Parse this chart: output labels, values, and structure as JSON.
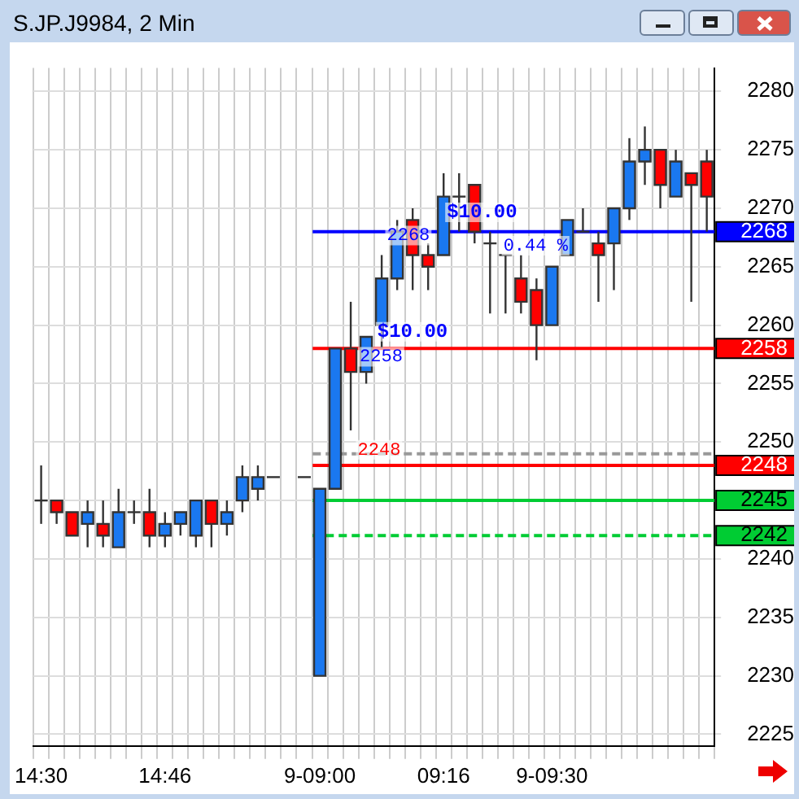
{
  "chart_data": {
    "type": "candlestick",
    "title": "S.JP.J9984, 2 Min",
    "categories": [
      "14:30",
      null,
      null,
      null,
      null,
      null,
      null,
      null,
      "14:46",
      null,
      null,
      null,
      null,
      null,
      null,
      null,
      null,
      null,
      "9-09:00",
      null,
      null,
      null,
      null,
      null,
      null,
      null,
      "09:16",
      null,
      null,
      null,
      null,
      null,
      null,
      "9-09:30",
      null,
      null,
      null,
      null,
      null,
      null,
      null,
      null,
      null,
      null
    ],
    "ohlc": [
      [
        2245,
        2248,
        2243,
        2245
      ],
      [
        2245,
        2245,
        2243,
        2244
      ],
      [
        2244,
        2244,
        2242,
        2242
      ],
      [
        2243,
        2245,
        2241,
        2244
      ],
      [
        2243,
        2245,
        2241,
        2242
      ],
      [
        2241,
        2246,
        2241,
        2244
      ],
      [
        2244,
        2245,
        2243,
        2244
      ],
      [
        2244,
        2246,
        2241,
        2242
      ],
      [
        2242,
        2244,
        2241,
        2243
      ],
      [
        2243,
        2244,
        2242,
        2244
      ],
      [
        2242,
        2245,
        2241,
        2245
      ],
      [
        2245,
        2245,
        2241,
        2243
      ],
      [
        2243,
        2245,
        2242,
        2244
      ],
      [
        2245,
        2248,
        2244,
        2247
      ],
      [
        2246,
        2248,
        2245,
        2247
      ],
      [
        2247,
        2247,
        2247,
        2247
      ],
      null,
      [
        2247,
        2247,
        2247,
        2247
      ],
      [
        2230,
        2246,
        2230,
        2246
      ],
      [
        2246,
        2258,
        2246,
        2258
      ],
      [
        2258,
        2262,
        2251,
        2256
      ],
      [
        2256,
        2259,
        2255,
        2259
      ],
      [
        2260,
        2266,
        2258,
        2264
      ],
      [
        2264,
        2269,
        2263,
        2268
      ],
      [
        2269,
        2270,
        2263,
        2266
      ],
      [
        2266,
        2267,
        2263,
        2265
      ],
      [
        2266,
        2273,
        2266,
        2271
      ],
      [
        2271,
        2273,
        2268,
        2271
      ],
      [
        2272,
        2272,
        2267,
        2268
      ],
      [
        2267,
        2268,
        2261,
        2267
      ],
      [
        2266,
        2266,
        2261,
        2266
      ],
      [
        2264,
        2266,
        2261,
        2262
      ],
      [
        2263,
        2264,
        2257,
        2260
      ],
      [
        2260,
        2265,
        2260,
        2265
      ],
      [
        2266,
        2269,
        2266,
        2269
      ],
      [
        2268,
        2270,
        2268,
        2268
      ],
      [
        2267,
        2268,
        2262,
        2266
      ],
      [
        2267,
        2270,
        2263,
        2270
      ],
      [
        2270,
        2276,
        2269,
        2274
      ],
      [
        2274,
        2277,
        2272,
        2275
      ],
      [
        2275,
        2275,
        2270,
        2272
      ],
      [
        2271,
        2275,
        2271,
        2274
      ],
      [
        2273,
        2273,
        2262,
        2272
      ],
      [
        2274,
        2275,
        2268,
        2271
      ]
    ],
    "colors": [
      "#333333",
      "#ff0000",
      "#ff0000",
      "#1a78f0",
      "#ff0000",
      "#1a78f0",
      "#333333",
      "#ff0000",
      "#1a78f0",
      "#1a78f0",
      "#1a78f0",
      "#ff0000",
      "#1a78f0",
      "#1a78f0",
      "#1a78f0",
      "#333333",
      null,
      "#333333",
      "#1a78f0",
      "#1a78f0",
      "#ff0000",
      "#1a78f0",
      "#1a78f0",
      "#1a78f0",
      "#ff0000",
      "#ff0000",
      "#1a78f0",
      "#333333",
      "#ff0000",
      "#333333",
      "#333333",
      "#ff0000",
      "#ff0000",
      "#1a78f0",
      "#1a78f0",
      "#333333",
      "#ff0000",
      "#1a78f0",
      "#1a78f0",
      "#1a78f0",
      "#ff0000",
      "#1a78f0",
      "#ff0000",
      "#ff0000"
    ],
    "ylim": [
      2224,
      2282
    ],
    "yticks": [
      2225,
      2230,
      2235,
      2240,
      {
        "value": 2245,
        "label": null
      },
      2250,
      2255,
      2260,
      2265,
      2270,
      2275,
      2280
    ],
    "grid": true,
    "legend": false,
    "ref_lines": [
      {
        "axis": "y",
        "value": 2268,
        "label": "2268",
        "color": "#0000ff"
      },
      {
        "axis": "y",
        "value": 2258,
        "label": "2258",
        "color": "#ff0000"
      },
      {
        "axis": "y",
        "value": 2249,
        "label": null,
        "color": "#999999",
        "line_style": "dashed"
      },
      {
        "axis": "y",
        "value": 2248,
        "label": "2248",
        "color": "#ff0000"
      },
      {
        "axis": "y",
        "value": 2245,
        "label": "2245",
        "color": "#00cc33"
      },
      {
        "axis": "y",
        "value": 2242,
        "label": "2242",
        "color": "#00cc33",
        "line_style": "dashed"
      }
    ],
    "annotations": [
      "$10.00",
      "0.44 %",
      "2268",
      "$10.00",
      "2258",
      "2248"
    ]
  }
}
